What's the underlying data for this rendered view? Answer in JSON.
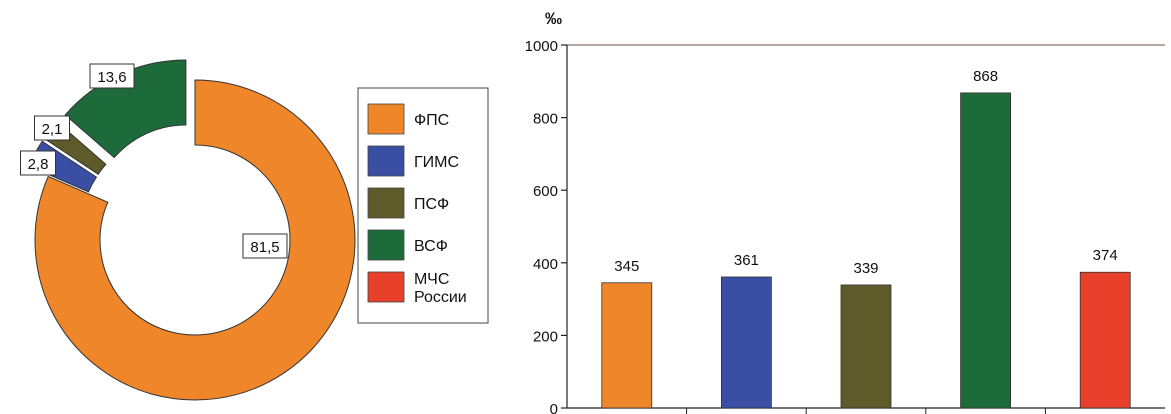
{
  "chart_data": [
    {
      "type": "pie",
      "variant": "donut-exploded",
      "categories": [
        "ФПС",
        "ГИМС",
        "ПСФ",
        "ВСФ"
      ],
      "values": [
        81.5,
        2.8,
        2.1,
        13.6
      ],
      "data_labels": [
        "81,5",
        "2,8",
        "2,1",
        "13,6"
      ],
      "colors": [
        "#f0862a",
        "#3a4fa3",
        "#5e5a2a",
        "#1d6b3a"
      ]
    },
    {
      "type": "bar",
      "categories": [
        "ФПС",
        "ГИМС",
        "ПСФ",
        "ВСФ",
        "МЧС России"
      ],
      "values": [
        345,
        361,
        339,
        868,
        374
      ],
      "data_labels": [
        "345",
        "361",
        "339",
        "868",
        "374"
      ],
      "colors": [
        "#f0862a",
        "#3a4fa3",
        "#5e5a2a",
        "#1d6b3a",
        "#e8402a"
      ],
      "ylabel": "‰",
      "ylim": [
        0,
        1000
      ],
      "yticks": [
        "0",
        "200",
        "400",
        "600",
        "800",
        "1000"
      ],
      "grid": false
    }
  ],
  "legend": {
    "placement": "center",
    "items": [
      {
        "label": "ФПС",
        "color": "#f0862a"
      },
      {
        "label": "ГИМС",
        "color": "#3a4fa3"
      },
      {
        "label": "ПСФ",
        "color": "#5e5a2a"
      },
      {
        "label": "ВСФ",
        "color": "#1d6b3a"
      },
      {
        "label_lines": [
          "МЧС",
          "России"
        ],
        "color": "#e8402a"
      }
    ]
  }
}
